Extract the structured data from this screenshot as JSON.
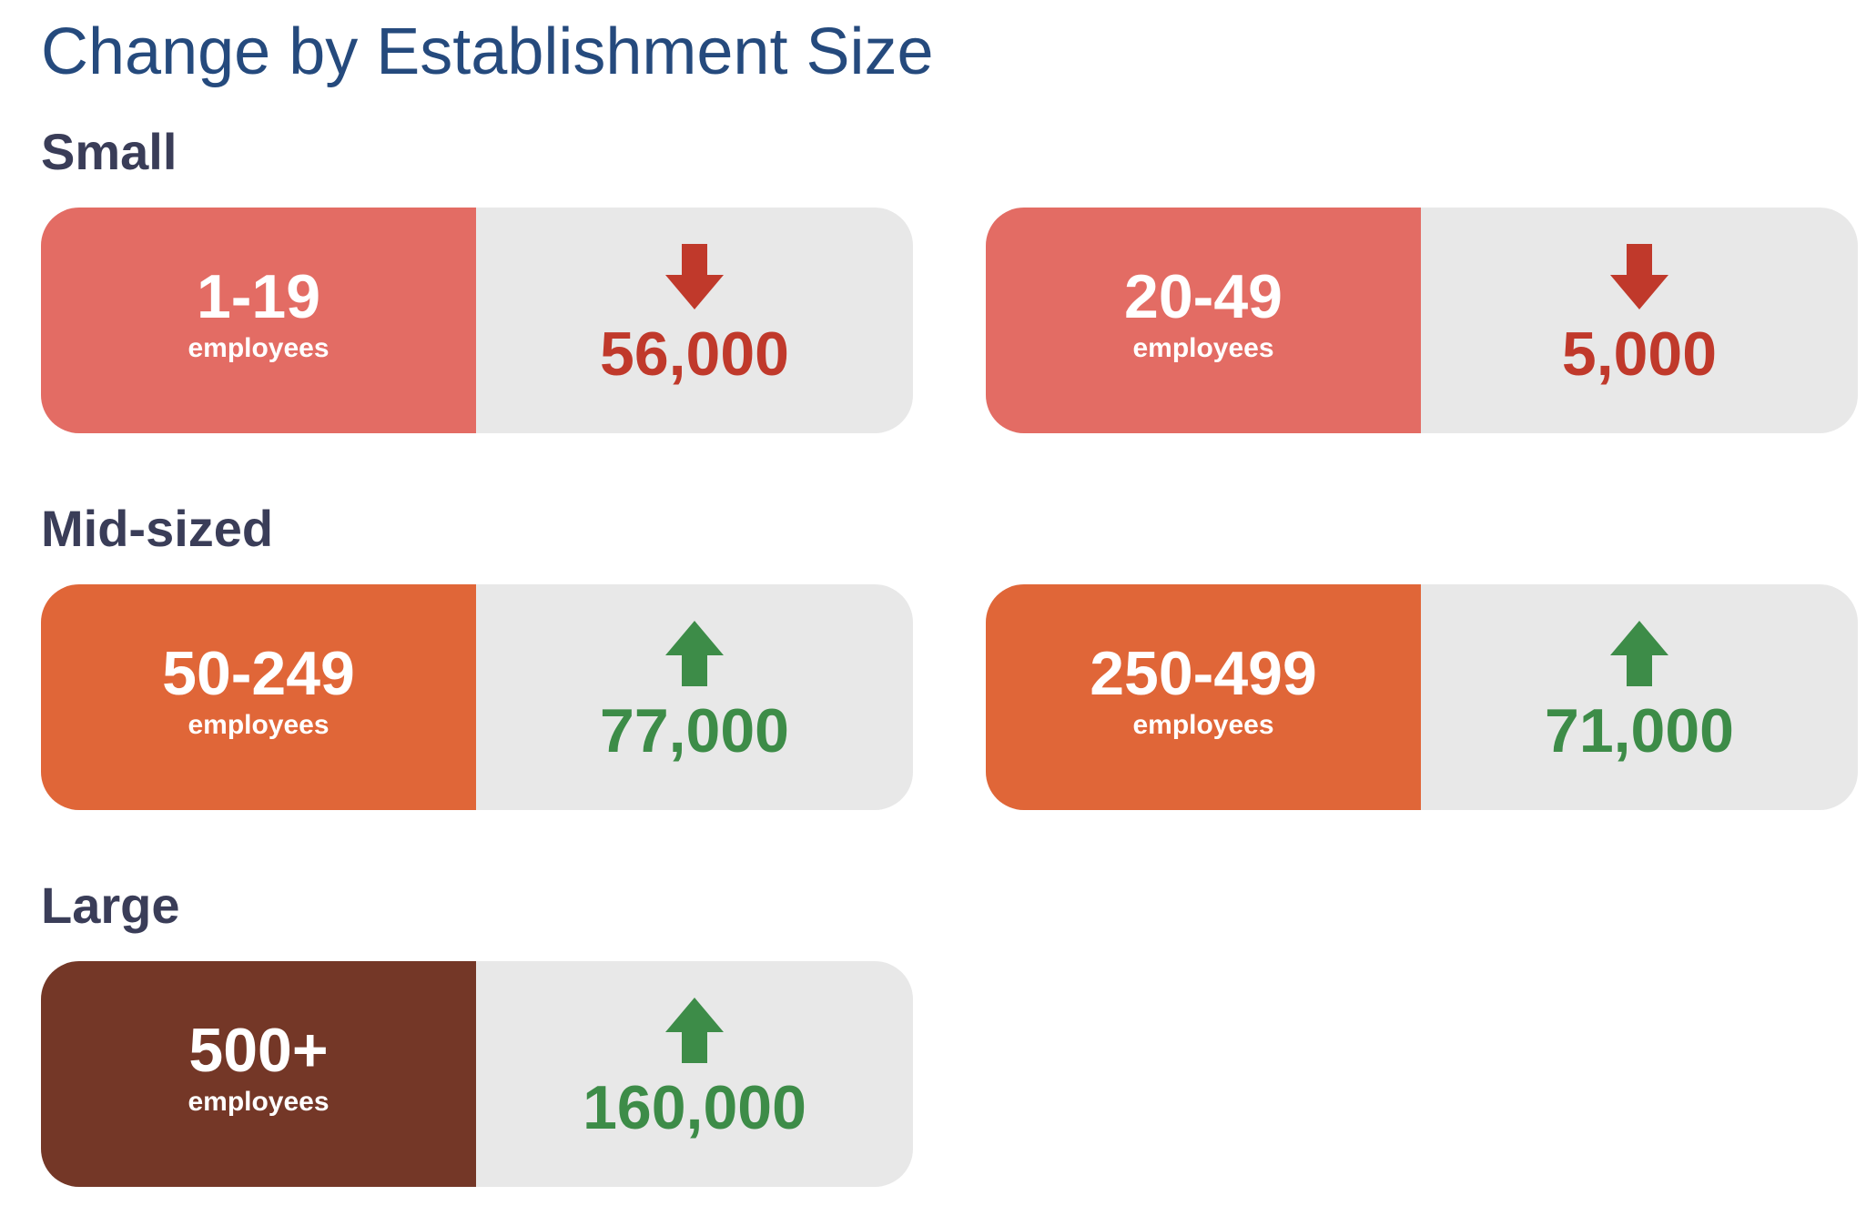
{
  "title": "Change by Establishment Size",
  "colors": {
    "title": "#254a7d",
    "heading": "#3a3d58",
    "small_fill": "#e36c64",
    "midsized_fill": "#e06638",
    "large_fill": "#743727",
    "value_panel": "#e8e8e8",
    "decrease": "#c0392b",
    "increase": "#3d8c48"
  },
  "groups": [
    {
      "heading": "Small",
      "cards": [
        {
          "range": "1-19",
          "unit": "employees",
          "direction": "down",
          "arrow_icon": "arrow-down-icon",
          "value": "56,000"
        },
        {
          "range": "20-49",
          "unit": "employees",
          "direction": "down",
          "arrow_icon": "arrow-down-icon",
          "value": "5,000"
        }
      ]
    },
    {
      "heading": "Mid-sized",
      "cards": [
        {
          "range": "50-249",
          "unit": "employees",
          "direction": "up",
          "arrow_icon": "arrow-up-icon",
          "value": "77,000"
        },
        {
          "range": "250-499",
          "unit": "employees",
          "direction": "up",
          "arrow_icon": "arrow-up-icon",
          "value": "71,000"
        }
      ]
    },
    {
      "heading": "Large",
      "cards": [
        {
          "range": "500+",
          "unit": "employees",
          "direction": "up",
          "arrow_icon": "arrow-up-icon",
          "value": "160,000"
        }
      ]
    }
  ]
}
